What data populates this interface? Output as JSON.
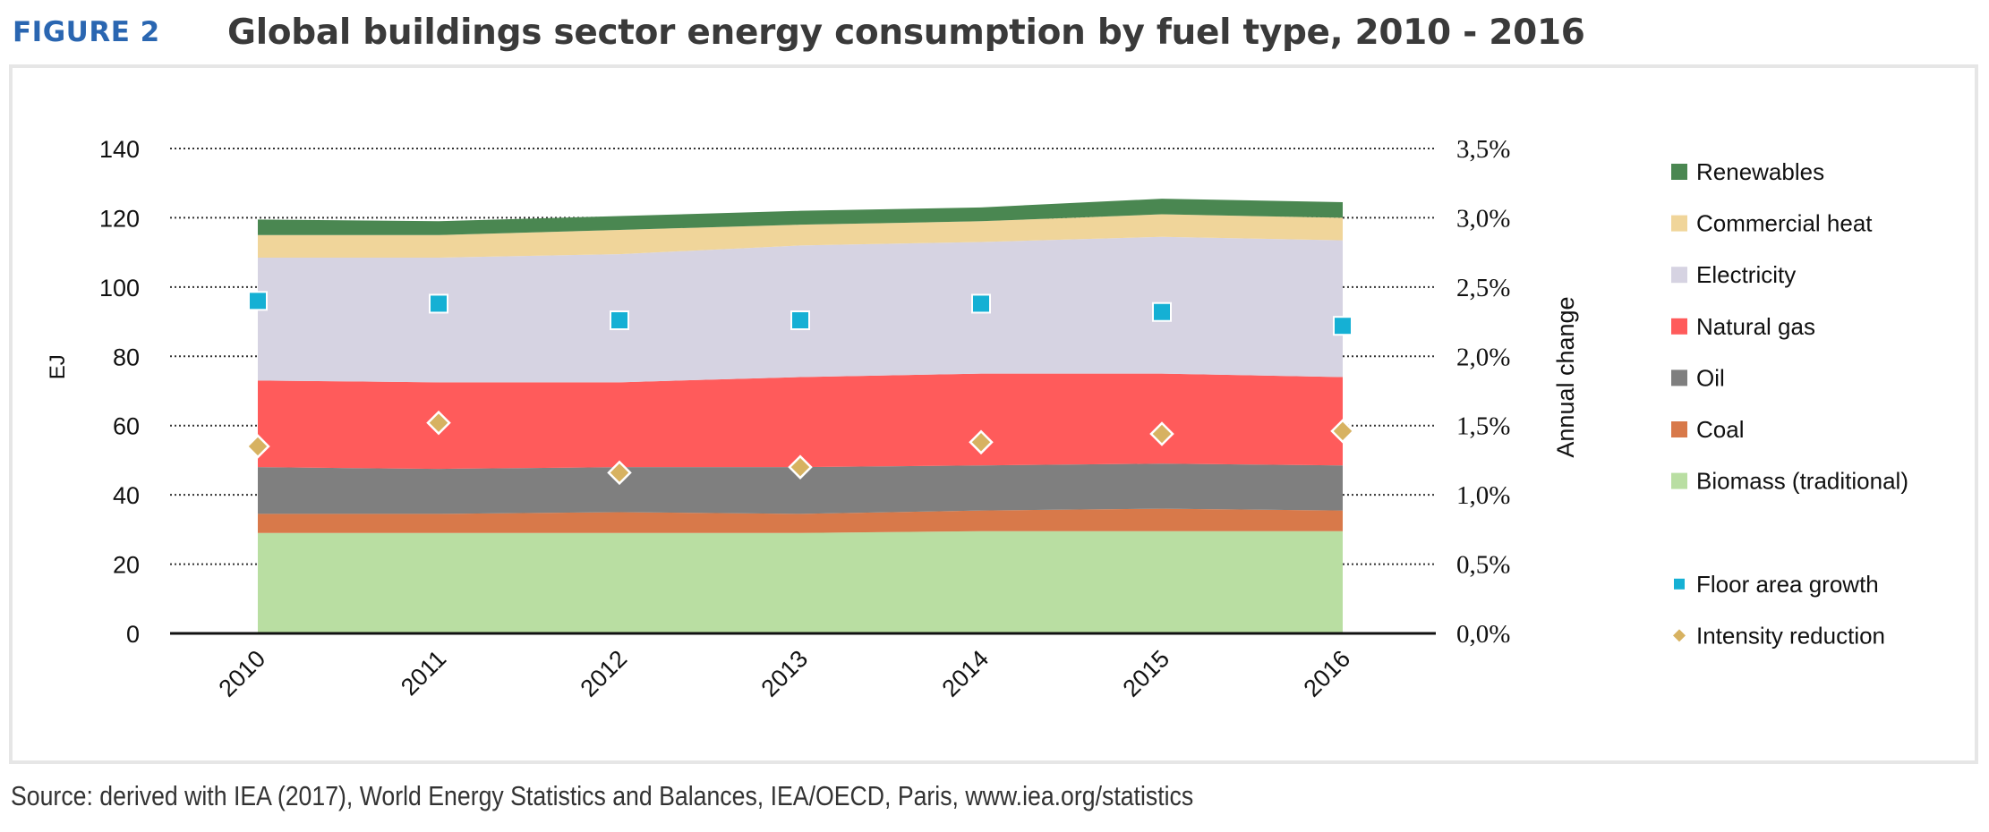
{
  "header": {
    "figure_label": "FIGURE 2",
    "title": "Global buildings sector energy consumption by fuel type, 2010 - 2016"
  },
  "source_note": "Source: derived with IEA (2017), World Energy Statistics and Balances, IEA/OECD, Paris, www.iea.org/statistics",
  "chart_data": {
    "type": "area",
    "categories": [
      "2010",
      "2011",
      "2012",
      "2013",
      "2014",
      "2015",
      "2016"
    ],
    "ylabel": "EJ",
    "y2label": "Annual change",
    "ylim": [
      0,
      140
    ],
    "y2lim": [
      0,
      3.5
    ],
    "yticks": [
      "0",
      "20",
      "40",
      "60",
      "80",
      "100",
      "120",
      "140"
    ],
    "y2ticks": [
      "0,0%",
      "0,5%",
      "1,0%",
      "1,5%",
      "2,0%",
      "2,5%",
      "3,0%",
      "3,5%"
    ],
    "grid": true,
    "legend_position": "right",
    "series": [
      {
        "name": "Biomass (traditional)",
        "color": "#b9dea2",
        "values": [
          29,
          29,
          29,
          29,
          29.5,
          29.5,
          29.5
        ]
      },
      {
        "name": "Coal",
        "color": "#d8794a",
        "values": [
          5.5,
          5.5,
          6,
          5.5,
          6,
          6.5,
          6
        ]
      },
      {
        "name": "Oil",
        "color": "#7f7f7f",
        "values": [
          13.5,
          13,
          13,
          13.5,
          13,
          13,
          13
        ]
      },
      {
        "name": "Natural gas",
        "color": "#ff5b5b",
        "values": [
          25,
          25,
          24.5,
          26,
          26.5,
          26,
          25.5
        ]
      },
      {
        "name": "Electricity",
        "color": "#d6d3e2",
        "values": [
          35.5,
          36,
          37,
          38,
          38,
          39.5,
          39.5
        ]
      },
      {
        "name": "Commercial heat",
        "color": "#f0d59a",
        "values": [
          6.5,
          6.5,
          7,
          6,
          6,
          6.5,
          6.5
        ]
      },
      {
        "name": "Renewables",
        "color": "#4a8751",
        "values": [
          4.5,
          4,
          4,
          4,
          4,
          4.5,
          4.5
        ]
      }
    ],
    "markers": [
      {
        "name": "Floor area growth",
        "shape": "square",
        "color": "#15b0d4",
        "axis": "secondary",
        "values": [
          2.4,
          2.38,
          2.26,
          2.26,
          2.38,
          2.32,
          2.22
        ]
      },
      {
        "name": "Intensity reduction",
        "shape": "diamond",
        "color": "#d7b261",
        "axis": "secondary",
        "values": [
          1.35,
          1.52,
          1.16,
          1.2,
          1.38,
          1.44,
          1.46
        ]
      }
    ],
    "legend": [
      {
        "name": "Renewables",
        "color": "#4a8751",
        "shape": "square"
      },
      {
        "name": "Commercial heat",
        "color": "#f0d59a",
        "shape": "square"
      },
      {
        "name": "Electricity",
        "color": "#d6d3e2",
        "shape": "square"
      },
      {
        "name": "Natural gas",
        "color": "#ff5b5b",
        "shape": "square"
      },
      {
        "name": "Oil",
        "color": "#7f7f7f",
        "shape": "square"
      },
      {
        "name": "Coal",
        "color": "#d8794a",
        "shape": "square"
      },
      {
        "name": "Biomass (traditional)",
        "color": "#b9dea2",
        "shape": "square"
      },
      {
        "name": "Floor area growth",
        "color": "#15b0d4",
        "shape": "small-square"
      },
      {
        "name": "Intensity reduction",
        "color": "#d7b261",
        "shape": "small-diamond"
      }
    ]
  }
}
